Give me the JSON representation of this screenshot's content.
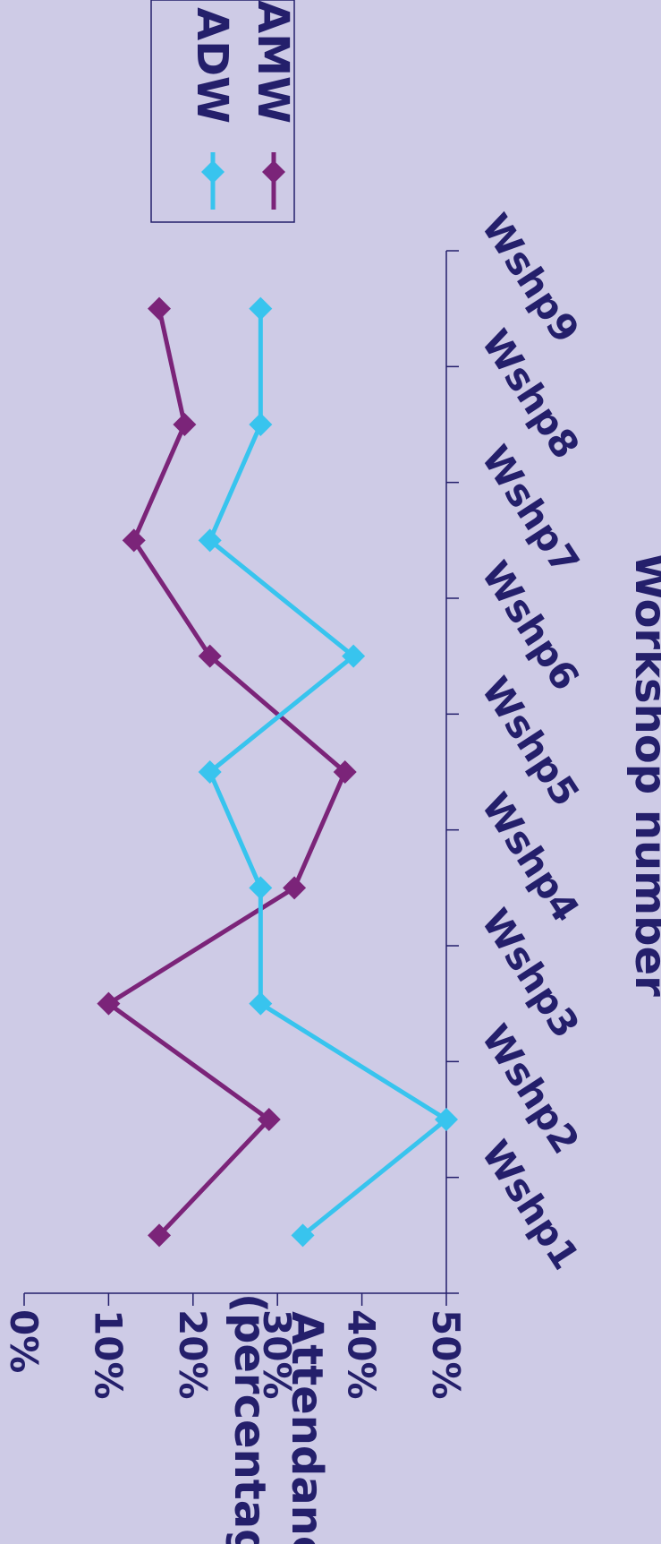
{
  "chart_data": {
    "type": "line",
    "xlabel": "Workshop number",
    "ylabel": "Attendance (percentage)",
    "categories": [
      "Wshp1",
      "Wshp2",
      "Wshp3",
      "Wshp4",
      "Wshp5",
      "Wshp6",
      "Wshp7",
      "Wshp8",
      "Wshp9"
    ],
    "y_ticks": [
      "0%",
      "10%",
      "20%",
      "30%",
      "40%",
      "50%"
    ],
    "ylim": [
      0,
      50
    ],
    "series": [
      {
        "name": "AMW",
        "color": "#7b2479",
        "values": [
          16,
          29,
          10,
          32,
          38,
          22,
          13,
          19,
          16
        ]
      },
      {
        "name": "ADW",
        "color": "#38c4ee",
        "values": [
          33,
          50,
          28,
          28,
          22,
          39,
          22,
          28,
          28
        ]
      }
    ],
    "legend": "top-right",
    "orientation": "rotated 90° clockwise",
    "marker": "diamond",
    "grid": false
  }
}
